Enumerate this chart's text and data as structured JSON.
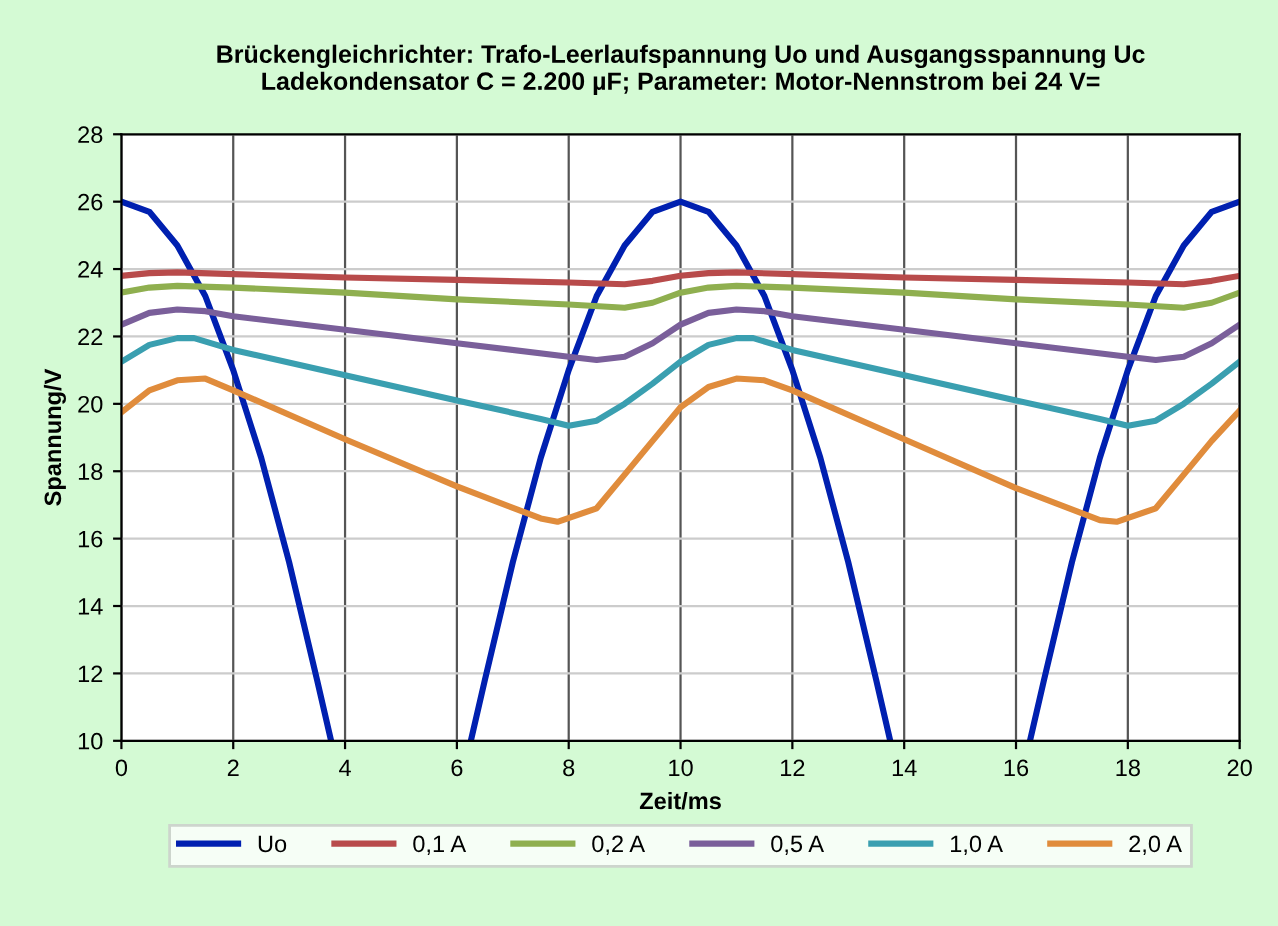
{
  "chart_data": {
    "type": "line",
    "title": "Brückengleichrichter: Trafo-Leerlaufspannung Uo und Ausgangsspannung Uc\nLadekondensator C = 2.200 µF; Parameter: Motor-Nennstrom bei 24 V=",
    "xlabel": "Zeit/ms",
    "ylabel": "Spannung/V",
    "xlim": [
      0,
      20
    ],
    "ylim": [
      10,
      28
    ],
    "xticks": [
      0,
      2,
      4,
      6,
      8,
      10,
      12,
      14,
      16,
      18,
      20
    ],
    "yticks": [
      10,
      12,
      14,
      16,
      18,
      20,
      22,
      24,
      26,
      28
    ],
    "grid": true,
    "legend": "bottom",
    "marker": "none",
    "line_style": "solid",
    "series": [
      {
        "name": "Uo",
        "color": "#0020b0",
        "x": [
          0,
          0.5,
          1,
          1.5,
          2,
          2.5,
          3,
          3.5,
          3.75,
          5,
          6.25,
          6.5,
          7,
          7.5,
          8,
          8.5,
          9,
          9.5,
          10,
          10.5,
          11,
          11.5,
          12,
          12.5,
          13,
          13.5,
          13.75,
          15,
          16.25,
          16.5,
          17,
          17.5,
          18,
          18.5,
          19,
          19.5,
          20
        ],
        "values": [
          26,
          25.7,
          24.7,
          23.2,
          21.0,
          18.4,
          15.3,
          11.8,
          10,
          null,
          10,
          11.8,
          15.3,
          18.4,
          21.0,
          23.2,
          24.7,
          25.7,
          26,
          25.7,
          24.7,
          23.2,
          21.0,
          18.4,
          15.3,
          11.8,
          10,
          null,
          10,
          11.8,
          15.3,
          18.4,
          21.0,
          23.2,
          24.7,
          25.7,
          26
        ]
      },
      {
        "name": "0,1 A",
        "color": "#b84b4b",
        "x": [
          0,
          0.5,
          1,
          2,
          4,
          6,
          8,
          9,
          9.5,
          10,
          10.5,
          11,
          12,
          14,
          16,
          18,
          19,
          19.5,
          20
        ],
        "values": [
          23.8,
          23.88,
          23.9,
          23.85,
          23.75,
          23.68,
          23.6,
          23.55,
          23.65,
          23.8,
          23.88,
          23.9,
          23.85,
          23.75,
          23.68,
          23.6,
          23.55,
          23.65,
          23.8
        ]
      },
      {
        "name": "0,2 A",
        "color": "#8faf4f",
        "x": [
          0,
          0.5,
          1,
          2,
          4,
          6,
          8,
          9,
          9.5,
          10,
          10.5,
          11,
          12,
          14,
          16,
          18,
          19,
          19.5,
          20
        ],
        "values": [
          23.3,
          23.45,
          23.5,
          23.45,
          23.3,
          23.1,
          22.95,
          22.85,
          23.0,
          23.3,
          23.45,
          23.5,
          23.45,
          23.3,
          23.1,
          22.95,
          22.85,
          23.0,
          23.3
        ]
      },
      {
        "name": "0,5 A",
        "color": "#7a5f9a",
        "x": [
          0,
          0.5,
          1,
          1.5,
          2,
          4,
          6,
          8,
          8.5,
          9,
          9.5,
          10,
          10.5,
          11,
          11.5,
          12,
          14,
          16,
          18,
          18.5,
          19,
          19.5,
          20
        ],
        "values": [
          22.35,
          22.7,
          22.8,
          22.75,
          22.6,
          22.2,
          21.8,
          21.4,
          21.3,
          21.4,
          21.8,
          22.35,
          22.7,
          22.8,
          22.75,
          22.6,
          22.2,
          21.8,
          21.4,
          21.3,
          21.4,
          21.8,
          22.35
        ]
      },
      {
        "name": "1,0 A",
        "color": "#3a9fb0",
        "x": [
          0,
          0.5,
          1,
          1.3,
          2,
          4,
          6,
          7.5,
          8,
          8.5,
          9,
          9.5,
          10,
          10.5,
          11,
          11.3,
          12,
          14,
          16,
          17.5,
          18,
          18.5,
          19,
          19.5,
          20
        ],
        "values": [
          21.25,
          21.75,
          21.95,
          21.95,
          21.6,
          20.85,
          20.1,
          19.55,
          19.35,
          19.5,
          20.0,
          20.6,
          21.25,
          21.75,
          21.95,
          21.95,
          21.6,
          20.85,
          20.1,
          19.55,
          19.35,
          19.5,
          20.0,
          20.6,
          21.25
        ]
      },
      {
        "name": "2,0 A",
        "color": "#e08c3c",
        "x": [
          0,
          0.5,
          1,
          1.5,
          2,
          4,
          6,
          7.5,
          7.8,
          8.5,
          9,
          9.5,
          10,
          10.5,
          11,
          11.5,
          12,
          14,
          16,
          17.5,
          17.8,
          18.5,
          19,
          19.5,
          20
        ],
        "values": [
          19.75,
          20.4,
          20.7,
          20.75,
          20.4,
          18.95,
          17.55,
          16.6,
          16.5,
          16.9,
          17.9,
          18.9,
          19.9,
          20.5,
          20.75,
          20.7,
          20.4,
          18.95,
          17.5,
          16.55,
          16.5,
          16.9,
          17.9,
          18.9,
          19.8
        ]
      }
    ]
  }
}
